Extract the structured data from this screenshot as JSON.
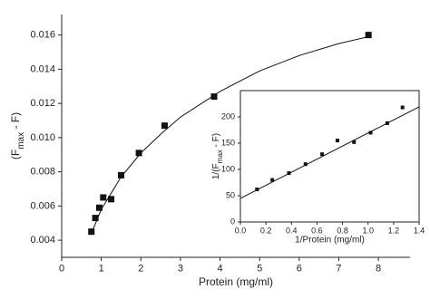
{
  "chart_data": [
    {
      "type": "scatter",
      "xlabel": "Protein (mg/ml)",
      "ylabel": [
        "(F",
        "max",
        " - F)"
      ],
      "xlim": [
        0,
        8.8
      ],
      "ylim": [
        0.003,
        0.0172
      ],
      "xticks": [
        0,
        1,
        2,
        3,
        4,
        5,
        6,
        7,
        8
      ],
      "yticks": [
        0.004,
        0.006,
        0.008,
        {
          "value": 0.01,
          "label": "0.010"
        },
        0.012,
        0.014,
        0.016
      ],
      "series": [
        {
          "style": "markers",
          "color": "#111111",
          "x": [
            0.75,
            0.85,
            0.95,
            1.05,
            1.25,
            1.5,
            1.95,
            2.6,
            3.85,
            7.75
          ],
          "values": [
            0.0045,
            0.0053,
            0.0059,
            0.0065,
            0.0064,
            0.0078,
            0.0091,
            0.0107,
            0.0124,
            0.016
          ]
        },
        {
          "style": "line",
          "color": "#111111",
          "x": [
            0.75,
            1,
            1.5,
            2,
            2.5,
            3,
            4,
            5,
            6,
            7,
            7.75
          ],
          "values": [
            0.0044,
            0.0058,
            0.0077,
            0.0091,
            0.0102,
            0.0112,
            0.0127,
            0.0139,
            0.0148,
            0.0155,
            0.0159
          ]
        }
      ]
    },
    {
      "type": "scatter",
      "xlabel": "1/Protein (mg/ml)",
      "ylabel": [
        "1/(F",
        "max",
        " - F)"
      ],
      "xlim": [
        0,
        1.4
      ],
      "ylim": [
        0,
        250
      ],
      "xticks": [
        {
          "value": 0,
          "label": "0.0"
        },
        0.2,
        0.4,
        0.6,
        0.8,
        {
          "value": 1,
          "label": "1.0"
        },
        1.2,
        1.4
      ],
      "yticks": [
        0,
        50,
        100,
        150,
        200
      ],
      "series": [
        {
          "style": "markers",
          "color": "#111111",
          "x": [
            0.13,
            0.25,
            0.38,
            0.51,
            0.64,
            0.76,
            0.89,
            1.02,
            1.15,
            1.27
          ],
          "values": [
            62,
            80,
            93,
            110,
            129,
            155,
            152,
            170,
            188,
            218
          ]
        },
        {
          "style": "line",
          "color": "#111111",
          "x": [
            0,
            1.4
          ],
          "values": [
            45,
            219
          ]
        }
      ]
    }
  ]
}
